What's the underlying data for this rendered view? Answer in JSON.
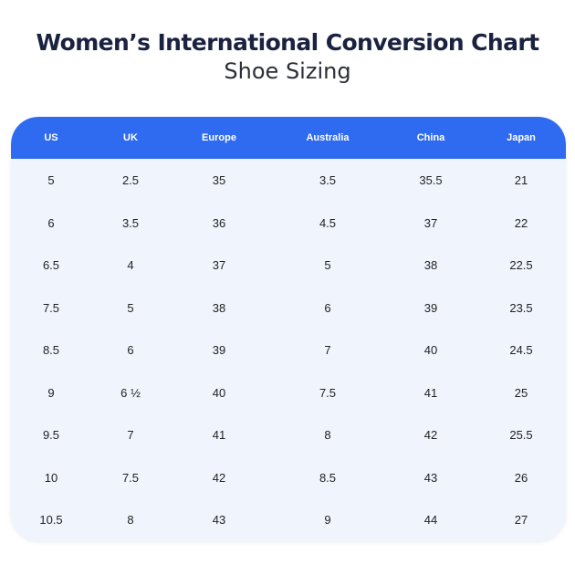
{
  "title": "Women’s International Conversion Chart",
  "subtitle": "Shoe Sizing",
  "colors": {
    "header_bg": "#2f6bf0",
    "header_text": "#ffffff",
    "table_bg": "#eff4fd",
    "title_text": "#1a2240"
  },
  "chart_data": {
    "type": "table",
    "title": "Women’s International Conversion Chart",
    "subtitle": "Shoe Sizing",
    "columns": [
      "US",
      "UK",
      "Europe",
      "Australia",
      "China",
      "Japan"
    ],
    "rows": [
      [
        "5",
        "2.5",
        "35",
        "3.5",
        "35.5",
        "21"
      ],
      [
        "6",
        "3.5",
        "36",
        "4.5",
        "37",
        "22"
      ],
      [
        "6.5",
        "4",
        "37",
        "5",
        "38",
        "22.5"
      ],
      [
        "7.5",
        "5",
        "38",
        "6",
        "39",
        "23.5"
      ],
      [
        "8.5",
        "6",
        "39",
        "7",
        "40",
        "24.5"
      ],
      [
        "9",
        "6 ½",
        "40",
        "7.5",
        "41",
        "25"
      ],
      [
        "9.5",
        "7",
        "41",
        "8",
        "42",
        "25.5"
      ],
      [
        "10",
        "7.5",
        "42",
        "8.5",
        "43",
        "26"
      ],
      [
        "10.5",
        "8",
        "43",
        "9",
        "44",
        "27"
      ]
    ]
  }
}
